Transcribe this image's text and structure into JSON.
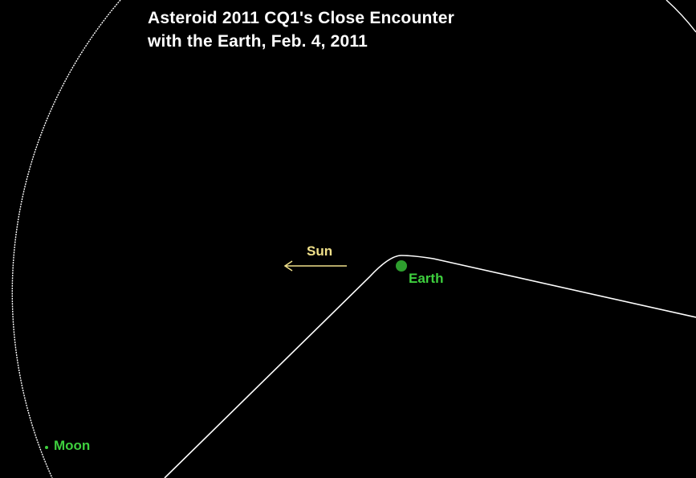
{
  "title": {
    "line1": "Asteroid 2011 CQ1's Close Encounter",
    "line2": "with the Earth, Feb. 4, 2011"
  },
  "labels": {
    "sun": "Sun",
    "earth": "Earth",
    "moon": "Moon"
  },
  "colors": {
    "background": "#000000",
    "title": "#ffffff",
    "orbit": "#ffffff",
    "trajectory": "#ffffff",
    "sun": "#f0e08a",
    "earth": "#2e9e2e",
    "earth_label": "#3ecf3e",
    "moon": "#3ecf3e"
  }
}
